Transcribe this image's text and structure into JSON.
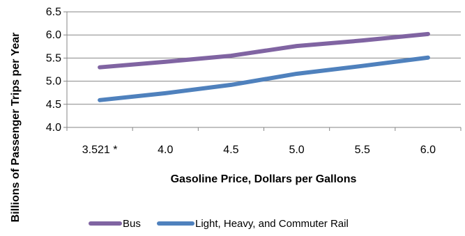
{
  "chart_data": {
    "type": "line",
    "categories": [
      "3.521 *",
      "4.0",
      "4.5",
      "5.0",
      "5.5",
      "6.0"
    ],
    "series": [
      {
        "name": "Bus",
        "values": [
          5.3,
          5.42,
          5.55,
          5.76,
          5.88,
          6.02
        ],
        "color": "#8064A2"
      },
      {
        "name": "Light, Heavy, and Commuter Rail",
        "values": [
          4.59,
          4.74,
          4.92,
          5.16,
          5.33,
          5.51
        ],
        "color": "#4F81BD"
      }
    ],
    "xlabel": "Gasoline Price, Dollars per Gallons",
    "ylabel": "Billions of Passenger Trips per Year",
    "ylim": [
      4.0,
      6.5
    ],
    "yticks": [
      "4.0",
      "4.5",
      "5.0",
      "5.5",
      "6.0",
      "6.5"
    ],
    "grid": "horizontal",
    "legend": "bottom"
  }
}
